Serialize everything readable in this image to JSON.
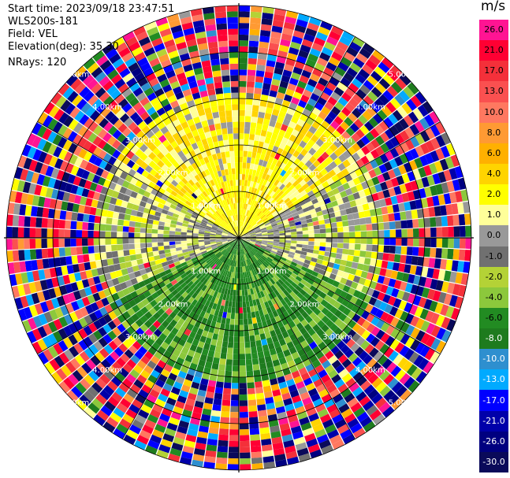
{
  "header": {
    "start_time": "Start time: 2023/09/18 23:47:51",
    "instrument": "WLS200s-181",
    "field": "Field: VEL",
    "elevation": "Elevation(deg): 35.30",
    "nrays": "NRays: 120"
  },
  "colorbar": {
    "unit": "m/s",
    "labels": [
      "26.0",
      "21.0",
      "17.0",
      "13.0",
      "10.0",
      "8.0",
      "6.0",
      "4.0",
      "2.0",
      "1.0",
      "0.0",
      "-1.0",
      "-2.0",
      "-4.0",
      "-6.0",
      "-8.0",
      "-10.0",
      "-13.0",
      "-17.0",
      "-21.0",
      "-26.0",
      "-30.0"
    ],
    "colors": [
      "#ff1493",
      "#ff0033",
      "#f4303a",
      "#fa5050",
      "#ff7860",
      "#ff9a33",
      "#ffb000",
      "#ffd400",
      "#ffff00",
      "#ffff99",
      "#999999",
      "#707070",
      "#b4d236",
      "#8cc83c",
      "#228b22",
      "#1e7b1e",
      "#2e8fcf",
      "#00aaff",
      "#0000ff",
      "#0000aa",
      "#000080",
      "#0a0a5a"
    ]
  },
  "chart_data": {
    "type": "heatmap",
    "projection": "polar PPI",
    "field": "VEL",
    "unit": "m/s",
    "nrays": 120,
    "elevation_deg": 35.3,
    "range_rings_km": [
      1.0,
      2.0,
      3.0,
      4.0,
      5.0
    ],
    "range_ring_labels": [
      "1.00km",
      "2.00km",
      "3.00km",
      "4.00km",
      "5.00km"
    ],
    "clean_data_radius_km": 3.1,
    "sectors": [
      {
        "azimuth_deg": [
          300,
          360
        ],
        "velocity_ms": 3.0
      },
      {
        "azimuth_deg": [
          0,
          60
        ],
        "velocity_ms": 3.0
      },
      {
        "azimuth_deg": [
          60,
          115
        ],
        "velocity_ms": 0.0
      },
      {
        "azimuth_deg": [
          115,
          245
        ],
        "velocity_ms": -5.0
      },
      {
        "azimuth_deg": [
          245,
          300
        ],
        "velocity_ms": 0.0
      }
    ],
    "colorscale_ticks": [
      26.0,
      21.0,
      17.0,
      13.0,
      10.0,
      8.0,
      6.0,
      4.0,
      2.0,
      1.0,
      0.0,
      -1.0,
      -2.0,
      -4.0,
      -6.0,
      -8.0,
      -10.0,
      -13.0,
      -17.0,
      -21.0,
      -26.0,
      -30.0
    ]
  }
}
